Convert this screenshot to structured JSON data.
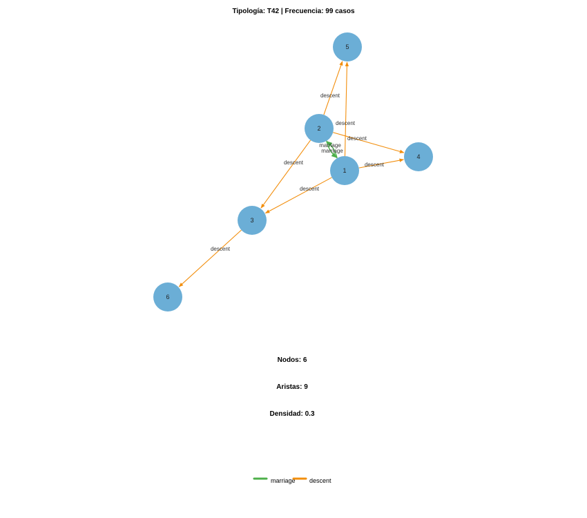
{
  "title": "Tipología: T42 | Frecuencia: 99 casos",
  "colors": {
    "node": "#6baed6",
    "marriage": "#4daf4a",
    "descent": "#f28e0c"
  },
  "nodes": [
    {
      "id": "1"
    },
    {
      "id": "2"
    },
    {
      "id": "3"
    },
    {
      "id": "4"
    },
    {
      "id": "5"
    },
    {
      "id": "6"
    }
  ],
  "edges": [
    {
      "from": "2",
      "to": "5",
      "type": "descent",
      "label": "descent"
    },
    {
      "from": "1",
      "to": "5",
      "type": "descent",
      "label": "descent"
    },
    {
      "from": "2",
      "to": "4",
      "type": "descent",
      "label": "descent"
    },
    {
      "from": "1",
      "to": "4",
      "type": "descent",
      "label": "descent"
    },
    {
      "from": "2",
      "to": "3",
      "type": "descent",
      "label": "descent"
    },
    {
      "from": "1",
      "to": "3",
      "type": "descent",
      "label": "descent"
    },
    {
      "from": "3",
      "to": "6",
      "type": "descent",
      "label": "descent"
    },
    {
      "from": "1",
      "to": "2",
      "type": "marriage",
      "label": "marriage"
    },
    {
      "from": "2",
      "to": "1",
      "type": "marriage",
      "label": "marriage"
    }
  ],
  "stats": {
    "nodes": "Nodos: 6",
    "edges": "Aristas: 9",
    "density": "Densidad: 0.3"
  },
  "legend": [
    {
      "type": "marriage",
      "label": "marriage"
    },
    {
      "type": "descent",
      "label": "descent"
    }
  ]
}
